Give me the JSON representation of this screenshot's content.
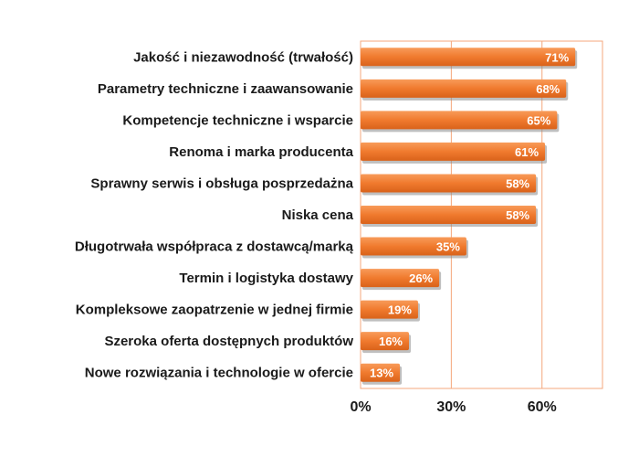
{
  "chart_data": {
    "type": "bar",
    "orientation": "horizontal",
    "categories": [
      "Jakość i niezawodność (trwałość)",
      "Parametry techniczne i zaawansowanie",
      "Kompetencje techniczne i wsparcie",
      "Renoma i marka producenta",
      "Sprawny serwis i obsługa posprzedażna",
      "Niska cena",
      "Długotrwała współpraca z dostawcą/marką",
      "Termin i logistyka dostawy",
      "Kompleksowe zaopatrzenie w jednej firmie",
      "Szeroka oferta dostępnych produktów",
      "Nowe rozwiązania i technologie w ofercie"
    ],
    "values": [
      71,
      68,
      65,
      61,
      58,
      58,
      35,
      26,
      19,
      16,
      13
    ],
    "value_labels": [
      "71%",
      "68%",
      "65%",
      "61%",
      "58%",
      "58%",
      "35%",
      "26%",
      "19%",
      "16%",
      "13%"
    ],
    "xlim": [
      0,
      80
    ],
    "xticks": [
      0,
      30,
      60
    ],
    "xtick_labels": [
      "0%",
      "30%",
      "60%"
    ],
    "grid": true,
    "colors": {
      "bar": "#f07a2e",
      "bar_light": "#f89b5a",
      "bar_shadow": "#8a8a8a",
      "frame": "#f4a77c",
      "grid": "#f4a77c",
      "text": "#1a1a1a",
      "value_text": "#ffffff"
    }
  }
}
